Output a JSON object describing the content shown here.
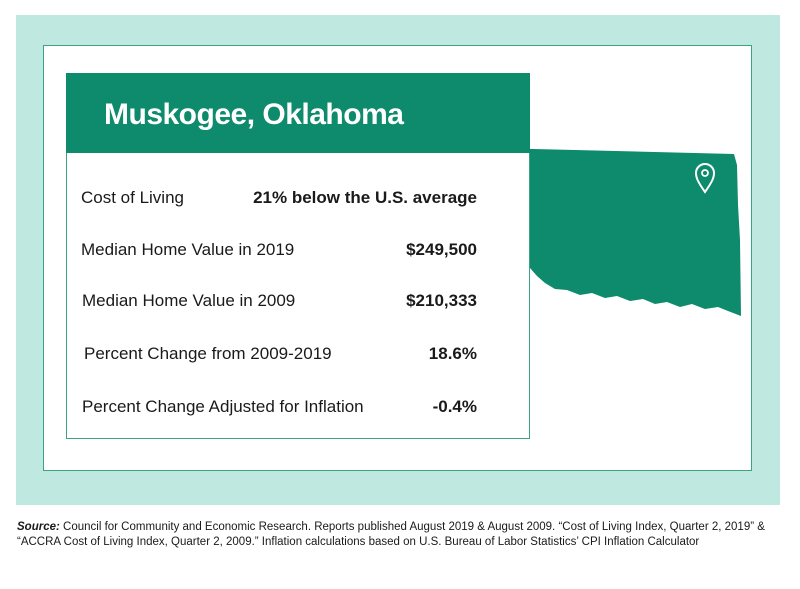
{
  "location": {
    "title": "Muskogee, Oklahoma"
  },
  "stats": [
    {
      "label": "Cost of Living",
      "value": "21% below the U.S. average"
    },
    {
      "label": "Median Home Value in 2019",
      "value": "$249,500"
    },
    {
      "label": "Median Home Value in 2009",
      "value": "$210,333"
    },
    {
      "label": "Percent Change from 2009-2019",
      "value": "18.6%"
    },
    {
      "label": "Percent Change Adjusted for Inflation",
      "value": "-0.4%"
    }
  ],
  "map": {
    "state_icon": "oklahoma-state-silhouette",
    "marker_icon": "location-pin-icon"
  },
  "source": {
    "label": "Source:",
    "text": " Council for Community and Economic Research. Reports published August 2019 & August 2009. “Cost of Living Index, Quarter 2, 2019” & “ACCRA Cost of Living Index, Quarter 2, 2009.” Inflation calculations based on U.S. Bureau of Labor Statistics’ CPI Inflation Calculator"
  },
  "colors": {
    "brand_green": "#0e8a6c",
    "frame_mint": "#bfe9e0",
    "border_green": "#3aa383"
  }
}
